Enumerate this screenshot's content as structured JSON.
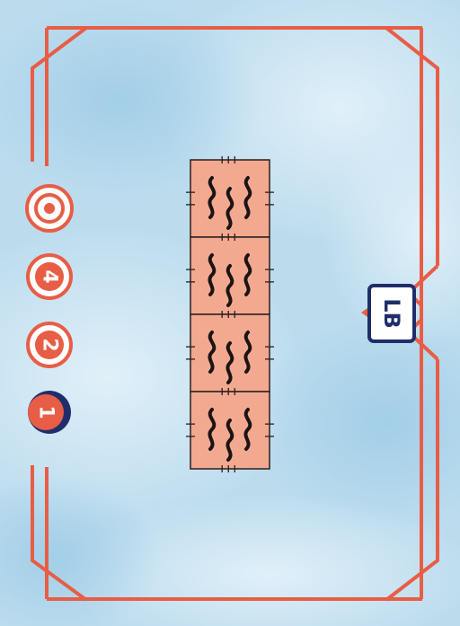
{
  "card": {
    "colors": {
      "frame": "#e85d45",
      "tile_fill": "#f3a98f",
      "tile_border": "#2a1e1e",
      "wave": "#1c1414",
      "badge_navy": "#1f2e6b",
      "sky_light": "#d6ecf7",
      "sky_mid": "#a9d2ea"
    },
    "tile_icon": "heat-wave-icon",
    "tile_count": 4,
    "tracker": [
      {
        "kind": "target",
        "icon": "target-icon",
        "label": "",
        "active": false
      },
      {
        "kind": "number",
        "label": "4",
        "active": false
      },
      {
        "kind": "number",
        "label": "2",
        "active": false
      },
      {
        "kind": "number",
        "label": "1",
        "active": true
      }
    ],
    "side_badge": {
      "label": "LB"
    }
  }
}
